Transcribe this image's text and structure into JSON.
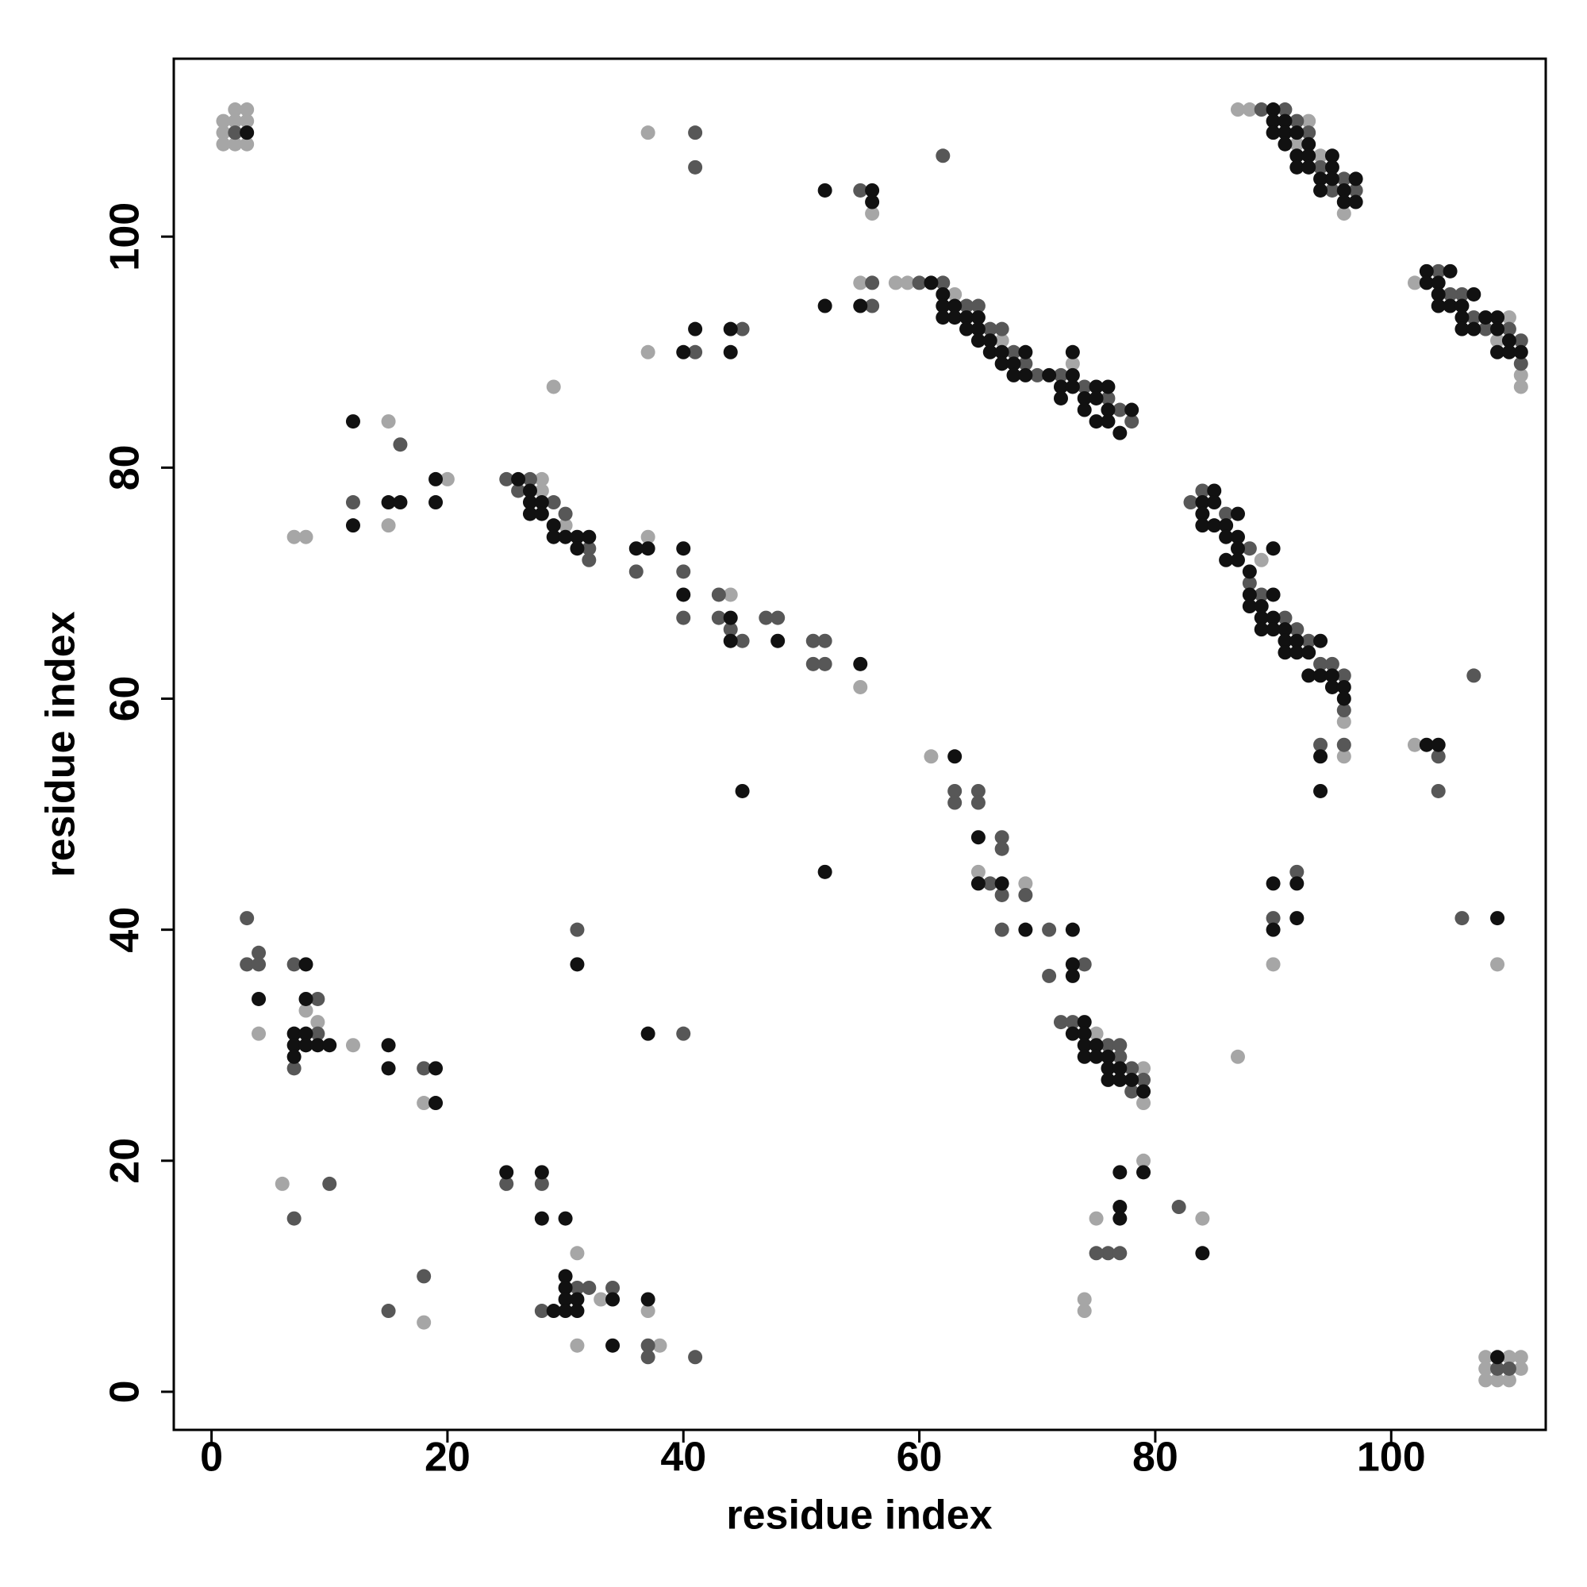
{
  "chart_data": {
    "type": "scatter",
    "x_label": "residue index",
    "y_label": "residue index",
    "xlim": [
      -3.2,
      113.1
    ],
    "ylim": [
      -3.3,
      115.4
    ],
    "xticks": [
      0,
      20,
      40,
      60,
      80,
      100
    ],
    "yticks": [
      0,
      20,
      40,
      60,
      80,
      100
    ],
    "grid": false,
    "series": [
      {
        "color": "#a6a6a6",
        "x": [
          1,
          1,
          1,
          2,
          2,
          3,
          3,
          3,
          2,
          108,
          108,
          109,
          110,
          110,
          111,
          111,
          108,
          87,
          88,
          92,
          93,
          96,
          94,
          58,
          59,
          63,
          73,
          67,
          102,
          110,
          111,
          111,
          109,
          96,
          96,
          90,
          89,
          20,
          28,
          28,
          30,
          44,
          55,
          37,
          37,
          37,
          29,
          56,
          55,
          15,
          15,
          7,
          8,
          61,
          65,
          69,
          75,
          79,
          79,
          79,
          4,
          8,
          9,
          12,
          18,
          6,
          18,
          31,
          31,
          33,
          37,
          38,
          87,
          75,
          74,
          74,
          84,
          90,
          109,
          102
        ],
        "values": [
          108,
          109,
          110,
          108,
          111,
          108,
          110,
          111,
          110,
          1,
          3,
          1,
          1,
          3,
          3,
          2,
          2,
          111,
          111,
          108,
          110,
          102,
          107,
          96,
          96,
          95,
          89,
          91,
          96,
          93,
          88,
          87,
          91,
          58,
          55,
          73,
          72,
          79,
          79,
          78,
          75,
          69,
          61,
          74,
          109,
          90,
          87,
          102,
          96,
          84,
          75,
          74,
          74,
          55,
          45,
          44,
          31,
          28,
          25,
          20,
          31,
          33,
          32,
          30,
          25,
          18,
          6,
          12,
          4,
          8,
          7,
          4,
          29,
          15,
          8,
          7,
          15,
          37,
          37,
          56
        ]
      },
      {
        "color": "#575757",
        "x": [
          2,
          109,
          110,
          89,
          91,
          92,
          94,
          96,
          97,
          93,
          95,
          60,
          62,
          64,
          65,
          66,
          67,
          68,
          70,
          72,
          74,
          76,
          77,
          78,
          69,
          104,
          106,
          107,
          108,
          110,
          111,
          111,
          105,
          83,
          84,
          86,
          88,
          89,
          91,
          92,
          93,
          94,
          95,
          96,
          96,
          94,
          96,
          88,
          25,
          26,
          27,
          29,
          30,
          32,
          32,
          36,
          40,
          40,
          43,
          43,
          44,
          45,
          47,
          48,
          51,
          52,
          51,
          52,
          41,
          41,
          62,
          55,
          56,
          56,
          41,
          45,
          16,
          12,
          63,
          63,
          65,
          65,
          67,
          67,
          66,
          67,
          67,
          69,
          71,
          71,
          72,
          73,
          74,
          76,
          77,
          77,
          78,
          78,
          79,
          3,
          3,
          4,
          4,
          7,
          9,
          7,
          8,
          9,
          18,
          18,
          15,
          7,
          10,
          25,
          28,
          31,
          31,
          32,
          34,
          37,
          37,
          41,
          40,
          28,
          76,
          77,
          82,
          75,
          92,
          90,
          104,
          104,
          106,
          107
        ],
        "values": [
          109,
          2,
          2,
          111,
          111,
          110,
          106,
          105,
          104,
          109,
          104,
          96,
          96,
          94,
          94,
          92,
          92,
          90,
          88,
          88,
          87,
          86,
          85,
          84,
          89,
          97,
          95,
          93,
          92,
          92,
          91,
          89,
          95,
          77,
          78,
          76,
          70,
          69,
          67,
          66,
          65,
          63,
          63,
          62,
          59,
          56,
          56,
          73,
          79,
          78,
          79,
          77,
          76,
          73,
          72,
          71,
          71,
          67,
          69,
          67,
          66,
          65,
          67,
          67,
          65,
          65,
          63,
          63,
          109,
          106,
          107,
          104,
          96,
          94,
          90,
          92,
          82,
          77,
          52,
          51,
          52,
          51,
          48,
          47,
          44,
          43,
          40,
          43,
          40,
          36,
          32,
          32,
          37,
          30,
          30,
          29,
          28,
          26,
          27,
          41,
          37,
          38,
          37,
          37,
          34,
          28,
          30,
          31,
          28,
          10,
          7,
          15,
          18,
          18,
          18,
          40,
          9,
          9,
          9,
          4,
          3,
          3,
          31,
          7,
          12,
          12,
          16,
          12,
          45,
          41,
          55,
          52,
          41,
          62
        ]
      },
      {
        "color": "#111111",
        "x": [
          3,
          109,
          90,
          90,
          90,
          91,
          91,
          91,
          92,
          92,
          92,
          93,
          93,
          93,
          94,
          94,
          95,
          95,
          95,
          96,
          96,
          97,
          97,
          61,
          62,
          62,
          62,
          63,
          63,
          64,
          64,
          65,
          65,
          65,
          66,
          66,
          67,
          67,
          68,
          68,
          69,
          69,
          71,
          72,
          72,
          73,
          73,
          73,
          74,
          74,
          75,
          75,
          75,
          76,
          76,
          76,
          77,
          78,
          103,
          103,
          104,
          104,
          104,
          105,
          105,
          106,
          106,
          106,
          107,
          107,
          108,
          109,
          109,
          109,
          110,
          110,
          111,
          84,
          84,
          84,
          85,
          85,
          85,
          86,
          86,
          86,
          87,
          87,
          87,
          87,
          88,
          88,
          88,
          89,
          89,
          89,
          90,
          90,
          90,
          90,
          91,
          91,
          91,
          92,
          92,
          93,
          93,
          94,
          94,
          95,
          95,
          96,
          96,
          94,
          94,
          26,
          27,
          27,
          27,
          28,
          28,
          29,
          29,
          30,
          31,
          31,
          32,
          36,
          37,
          40,
          40,
          44,
          44,
          48,
          55,
          19,
          19,
          12,
          52,
          56,
          56,
          41,
          40,
          44,
          44,
          52,
          55,
          12,
          15,
          16,
          45,
          52,
          63,
          65,
          65,
          67,
          69,
          73,
          73,
          73,
          73,
          74,
          74,
          74,
          74,
          75,
          75,
          76,
          76,
          76,
          77,
          77,
          78,
          79,
          79,
          4,
          8,
          8,
          7,
          7,
          7,
          8,
          8,
          9,
          10,
          15,
          15,
          19,
          19,
          25,
          28,
          28,
          30,
          30,
          30,
          30,
          30,
          31,
          31,
          29,
          34,
          34,
          37,
          31,
          37,
          77,
          77,
          77,
          84,
          90,
          90,
          92,
          92,
          103,
          104,
          109
        ],
        "values": [
          109,
          3,
          111,
          110,
          109,
          110,
          109,
          108,
          109,
          107,
          106,
          108,
          107,
          106,
          105,
          104,
          107,
          106,
          105,
          104,
          103,
          105,
          103,
          96,
          95,
          94,
          93,
          94,
          93,
          93,
          92,
          93,
          92,
          91,
          91,
          90,
          90,
          89,
          89,
          88,
          90,
          88,
          88,
          87,
          86,
          90,
          88,
          87,
          86,
          85,
          87,
          86,
          84,
          87,
          85,
          84,
          83,
          85,
          97,
          96,
          96,
          95,
          94,
          97,
          94,
          94,
          93,
          92,
          95,
          92,
          93,
          93,
          92,
          90,
          91,
          90,
          90,
          77,
          76,
          75,
          78,
          77,
          75,
          75,
          74,
          72,
          76,
          74,
          73,
          72,
          71,
          69,
          68,
          68,
          67,
          66,
          73,
          69,
          67,
          66,
          66,
          65,
          64,
          65,
          64,
          64,
          62,
          65,
          62,
          62,
          61,
          61,
          60,
          55,
          52,
          79,
          78,
          77,
          76,
          77,
          76,
          75,
          74,
          74,
          74,
          73,
          74,
          73,
          73,
          73,
          69,
          67,
          65,
          65,
          63,
          79,
          77,
          84,
          104,
          104,
          103,
          92,
          90,
          92,
          90,
          94,
          94,
          75,
          77,
          77,
          52,
          45,
          55,
          48,
          44,
          44,
          40,
          40,
          37,
          36,
          31,
          32,
          31,
          30,
          29,
          30,
          29,
          29,
          28,
          27,
          28,
          27,
          27,
          26,
          19,
          34,
          37,
          34,
          31,
          30,
          29,
          31,
          30,
          30,
          30,
          30,
          28,
          28,
          25,
          19,
          19,
          15,
          15,
          10,
          9,
          8,
          7,
          8,
          7,
          7,
          8,
          4,
          8,
          37,
          31,
          19,
          16,
          15,
          12,
          44,
          40,
          44,
          41,
          56,
          56,
          41
        ]
      }
    ]
  }
}
